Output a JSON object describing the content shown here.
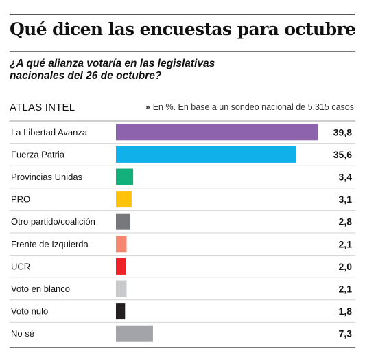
{
  "header": {
    "title": "Qué dicen las encuestas para octubre",
    "question_line1": "¿A qué alianza votaría en las legislativas",
    "question_line2": "nacionales del 26 de octubre?",
    "source": "ATLAS INTEL",
    "note": "En %. En base a un sondeo nacional de 5.315 casos"
  },
  "chart_data": {
    "type": "bar",
    "orientation": "horizontal",
    "categories": [
      "La Libertad Avanza",
      "Fuerza Patria",
      "Provincias Unidas",
      "PRO",
      "Otro partido/coalición",
      "Frente de Izquierda",
      "UCR",
      "Voto en blanco",
      "Voto nulo",
      "No sé"
    ],
    "values": [
      39.8,
      35.6,
      3.4,
      3.1,
      2.8,
      2.1,
      2.0,
      2.1,
      1.8,
      7.3
    ],
    "value_labels": [
      "39,8",
      "35,6",
      "3,4",
      "3,1",
      "2,8",
      "2,1",
      "2,0",
      "2,1",
      "1,8",
      "7,3"
    ],
    "colors": [
      "#8e63ad",
      "#10b0ea",
      "#13b07c",
      "#fdc30a",
      "#77787b",
      "#f58670",
      "#ee2226",
      "#c8c9cb",
      "#231f20",
      "#a3a4a7"
    ],
    "xlim": [
      0,
      40
    ],
    "grid": false,
    "legend": "none"
  }
}
